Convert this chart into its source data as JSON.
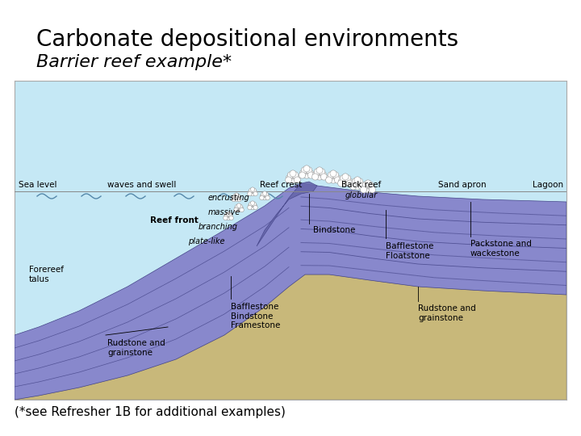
{
  "title": "Carbonate depositional environments",
  "subtitle": "Barrier reef example*",
  "footnote": "(*see Refresher 1B for additional examples)",
  "bg_color": "#ffffff",
  "diagram_border_color": "#aaaaaa",
  "water_color": "#c5e8f5",
  "seafloor_color": "#c8b87a",
  "reef_color": "#8888cc",
  "reef_mid": "#6666aa",
  "reef_dark": "#444488",
  "reef_stripe": "#5555aa",
  "title_fontsize": 20,
  "subtitle_fontsize": 16,
  "footnote_fontsize": 11,
  "label_fontsize": 7.5
}
